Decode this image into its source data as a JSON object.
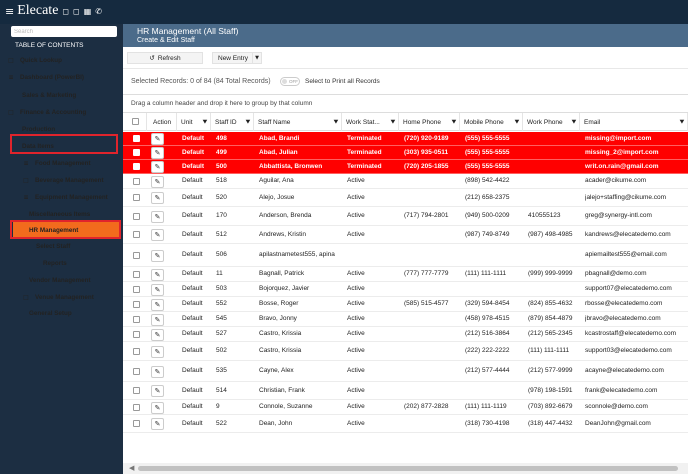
{
  "app": {
    "brand": "Elecate",
    "menu_icon": "hamburger-icon",
    "top_icons": [
      "small-square-icon",
      "small-square-icon",
      "calendar-icon",
      "phone-icon"
    ]
  },
  "sidebar": {
    "search_placeholder": "Search",
    "toc_title": "TABLE OF CONTENTS",
    "items": [
      {
        "label": "Quick Lookup",
        "icon": "square-icon"
      },
      {
        "label": "Dashboard (PowerBI)",
        "icon": "list-icon"
      },
      {
        "label": "Sales & Marketing",
        "icon": ""
      },
      {
        "label": "Finance & Accounting",
        "icon": "square-icon"
      },
      {
        "label": "Production",
        "icon": ""
      },
      {
        "label": "Data Items",
        "icon": ""
      },
      {
        "label": "Food Management",
        "icon": "list-icon"
      },
      {
        "label": "Beverage Management",
        "icon": "square-icon"
      },
      {
        "label": "Equipment Management",
        "icon": "list-icon"
      },
      {
        "label": "Miscellaneous Items",
        "icon": ""
      },
      {
        "label": "HR Management",
        "icon": ""
      },
      {
        "label": "Select Staff",
        "icon": ""
      },
      {
        "label": "Reports",
        "icon": ""
      },
      {
        "label": "Vendor Management",
        "icon": ""
      },
      {
        "label": "Venue Management",
        "icon": "square-icon"
      },
      {
        "label": "General Setup",
        "icon": ""
      }
    ]
  },
  "header": {
    "title": "HR Management (All Staff)",
    "subtitle": "Create & Edit Staff"
  },
  "toolbar": {
    "refresh_label": "Refresh",
    "new_entry_label": "New Entry"
  },
  "selection": {
    "text": "Selected Records: 0 of 84 (84 Total Records)",
    "toggle_label": "OFF",
    "print_label": "Select to Print all Records"
  },
  "group_hint": "Drag a column header and drop it here to group by that column",
  "colors": {
    "topbar": "#152a3f",
    "sidebar": "#1c2e42",
    "header": "#4b6b8a",
    "active": "#f26b1d",
    "terminated_row": "#ff0000",
    "highlight_box": "#e0242c"
  },
  "grid": {
    "columns": [
      "",
      "Action",
      "Unit",
      "Staff ID",
      "Staff Name",
      "Work Stat...",
      "Home Phone",
      "Mobile Phone",
      "Work Phone",
      "Email"
    ],
    "rows": [
      {
        "unit": "Default",
        "id": "498",
        "name": "Abad, Brandi",
        "status": "Terminated",
        "home": "(720) 920-9189",
        "mobile": "(555) 555-5555",
        "work": "",
        "email": "missing@import.com",
        "terminated": true
      },
      {
        "unit": "Default",
        "id": "499",
        "name": "Abad, Julian",
        "status": "Terminated",
        "home": "(303) 935-0511",
        "mobile": "(555) 555-5555",
        "work": "",
        "email": "missing_2@import.com",
        "terminated": true
      },
      {
        "unit": "Default",
        "id": "500",
        "name": "Abbattista, Bronwen",
        "status": "Terminated",
        "home": "(720) 205-1855",
        "mobile": "(555) 555-5555",
        "work": "",
        "email": "writ.on.rain@gmail.com",
        "terminated": true
      },
      {
        "unit": "Default",
        "id": "518",
        "name": "Aguilar, Ana",
        "status": "Active",
        "home": "",
        "mobile": "(898) 542-4422",
        "work": "",
        "email": "acader@cikume.com",
        "terminated": false
      },
      {
        "unit": "Default",
        "id": "520",
        "name": "Alejo, Josue",
        "status": "Active",
        "home": "",
        "mobile": "(212) 658-2375",
        "work": "",
        "email": "jalejo+staffing@cikume.com",
        "terminated": false
      },
      {
        "unit": "Default",
        "id": "170",
        "name": "Anderson, Brenda",
        "status": "Active",
        "home": "(717) 794-2801",
        "mobile": "(949) 500-0209",
        "work": "410555123",
        "email": "greg@synergy-intl.com",
        "terminated": false
      },
      {
        "unit": "Default",
        "id": "512",
        "name": "Andrews, Kristin",
        "status": "Active",
        "home": "",
        "mobile": "(987) 749-8749",
        "work": "(987) 498-4985",
        "email": "kandrews@elecatedemo.com",
        "terminated": false
      },
      {
        "unit": "Default",
        "id": "506",
        "name": "apilastnametest555, apina",
        "status": "",
        "home": "",
        "mobile": "",
        "work": "",
        "email": "apiemailtest555@email.com",
        "terminated": false
      },
      {
        "unit": "Default",
        "id": "11",
        "name": "Bagnall, Patrick",
        "status": "Active",
        "home": "(777) 777-7779",
        "mobile": "(111) 111-1111",
        "work": "(999) 999-9999",
        "email": "pbagnall@demo.com",
        "terminated": false
      },
      {
        "unit": "Default",
        "id": "503",
        "name": "Bojorquez, Javier",
        "status": "Active",
        "home": "",
        "mobile": "",
        "work": "",
        "email": "support07@elecatedemo.com",
        "terminated": false
      },
      {
        "unit": "Default",
        "id": "552",
        "name": "Bosse, Roger",
        "status": "Active",
        "home": "(585) 515-4577",
        "mobile": "(329) 594-8454",
        "work": "(824) 855-4632",
        "email": "rbosse@elecatedemo.com",
        "terminated": false
      },
      {
        "unit": "Default",
        "id": "545",
        "name": "Bravo, Jonny",
        "status": "Active",
        "home": "",
        "mobile": "(458) 978-4515",
        "work": "(879) 854-4879",
        "email": "jbravo@elecatedemo.com",
        "terminated": false
      },
      {
        "unit": "Default",
        "id": "527",
        "name": "Castro, Krissia",
        "status": "Active",
        "home": "",
        "mobile": "(212) 516-3864",
        "work": "(212) 565-2345",
        "email": "kcastrostaff@elecatedemo.com",
        "terminated": false
      },
      {
        "unit": "Default",
        "id": "502",
        "name": "Castro, Krissia",
        "status": "Active",
        "home": "",
        "mobile": "(222) 222-2222",
        "work": "(111) 111-1111",
        "email": "support03@elecatedemo.com",
        "terminated": false
      },
      {
        "unit": "Default",
        "id": "535",
        "name": "Cayne, Alex",
        "status": "Active",
        "home": "",
        "mobile": "(212) 577-4444",
        "work": "(212) 577-9999",
        "email": "acayne@elecatedemo.com",
        "terminated": false
      },
      {
        "unit": "Default",
        "id": "514",
        "name": "Christian, Frank",
        "status": "Active",
        "home": "",
        "mobile": "",
        "work": "(978) 198-1591",
        "email": "frank@elecatedemo.com",
        "terminated": false
      },
      {
        "unit": "Default",
        "id": "9",
        "name": "Connole, Suzanne",
        "status": "Active",
        "home": "(202) 877-2828",
        "mobile": "(111) 111-1119",
        "work": "(703) 892-6679",
        "email": "sconnole@demo.com",
        "terminated": false
      },
      {
        "unit": "Default",
        "id": "522",
        "name": "Dean, John",
        "status": "Active",
        "home": "",
        "mobile": "(318) 730-4198",
        "work": "(318) 447-4432",
        "email": "DeanJohn@gmail.com",
        "terminated": false
      }
    ]
  }
}
